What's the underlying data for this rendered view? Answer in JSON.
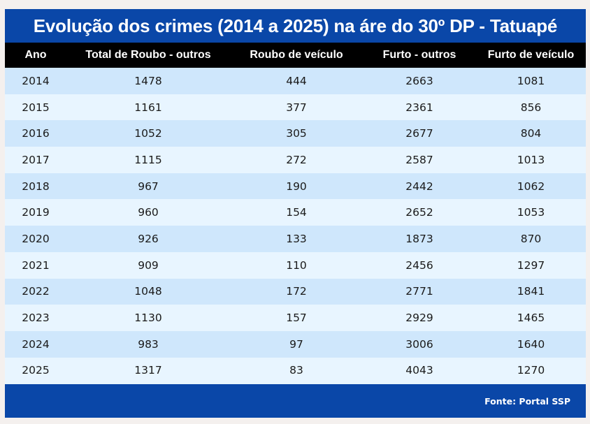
{
  "title": "Evolução dos crimes (2014 a 2025) na áre do 30º DP - Tatuapé",
  "colors": {
    "title_bg": "#0a47a8",
    "header_bg": "#000000",
    "row_odd": "#cfe7fc",
    "row_even": "#e8f5ff",
    "footer_bg": "#0a47a8",
    "page_bg": "#f4f0ee"
  },
  "table": {
    "columns": [
      "Ano",
      "Total de Roubo - outros",
      "Roubo de veículo",
      "Furto - outros",
      "Furto de veículo"
    ],
    "rows": [
      [
        "2014",
        "1478",
        "444",
        "2663",
        "1081"
      ],
      [
        "2015",
        "1161",
        "377",
        "2361",
        "856"
      ],
      [
        "2016",
        "1052",
        "305",
        "2677",
        "804"
      ],
      [
        "2017",
        "1115",
        "272",
        "2587",
        "1013"
      ],
      [
        "2018",
        "967",
        "190",
        "2442",
        "1062"
      ],
      [
        "2019",
        "960",
        "154",
        "2652",
        "1053"
      ],
      [
        "2020",
        "926",
        "133",
        "1873",
        "870"
      ],
      [
        "2021",
        "909",
        "110",
        "2456",
        "1297"
      ],
      [
        "2022",
        "1048",
        "172",
        "2771",
        "1841"
      ],
      [
        "2023",
        "1130",
        "157",
        "2929",
        "1465"
      ],
      [
        "2024",
        "983",
        "97",
        "3006",
        "1640"
      ],
      [
        "2025",
        "1317",
        "83",
        "4043",
        "1270"
      ]
    ]
  },
  "footer": {
    "source": "Fonte: Portal SSP"
  }
}
